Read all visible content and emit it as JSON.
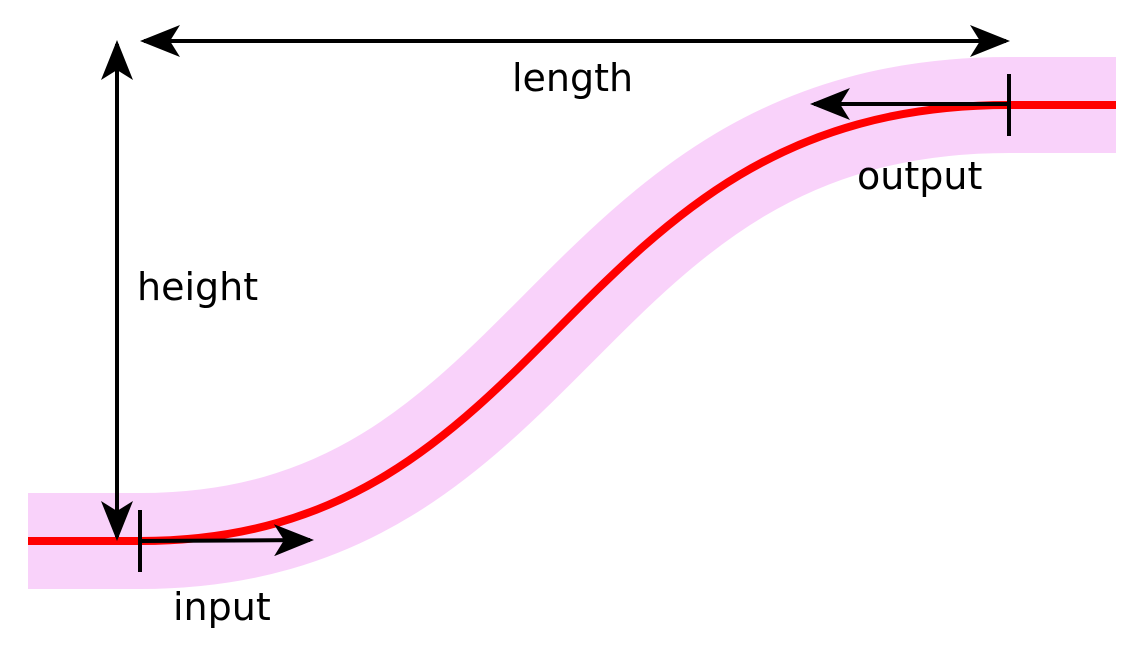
{
  "labels": {
    "length": "length",
    "height": "height",
    "input": "input",
    "output": "output"
  },
  "colors": {
    "waveguide_core": "#ff0000",
    "cladding": "#f9d2fa",
    "annotation": "#000000",
    "background": "#ffffff"
  }
}
